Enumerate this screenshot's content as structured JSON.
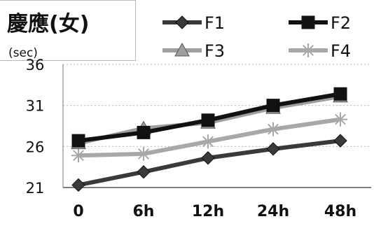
{
  "chart_data": {
    "type": "line",
    "title": "慶應(女)",
    "ylabel": "(sec)",
    "xlabel": "",
    "categories": [
      "0",
      "6h",
      "12h",
      "24h",
      "48h"
    ],
    "ylim": [
      21,
      36
    ],
    "yticks": [
      21,
      26,
      31,
      36
    ],
    "grid": true,
    "legend_position": "top",
    "series": [
      {
        "name": "F1",
        "values": [
          21.3,
          22.9,
          24.6,
          25.7,
          26.7
        ],
        "color": "#3a3a3a",
        "marker": "diamond"
      },
      {
        "name": "F2",
        "values": [
          26.7,
          27.7,
          29.2,
          31.0,
          32.4
        ],
        "color": "#111111",
        "marker": "square"
      },
      {
        "name": "F3",
        "values": [
          26.4,
          28.2,
          28.9,
          30.7,
          32.1
        ],
        "color": "#9e9e9e",
        "marker": "triangle"
      },
      {
        "name": "F4",
        "values": [
          24.9,
          25.1,
          26.6,
          28.1,
          29.3
        ],
        "color": "#a8a8a8",
        "marker": "asterisk"
      }
    ]
  }
}
